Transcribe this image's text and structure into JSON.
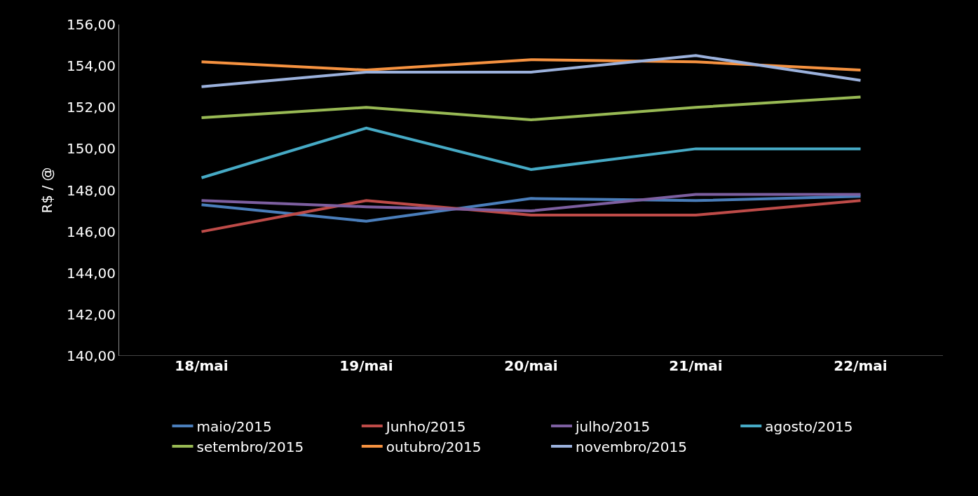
{
  "chart_data": {
    "type": "line",
    "ylabel": "R$ / @",
    "categories": [
      "18/mai",
      "19/mai",
      "20/mai",
      "21/mai",
      "22/mai"
    ],
    "series": [
      {
        "name": "maio/2015",
        "color": "#4a7ebb",
        "values": [
          147.3,
          146.5,
          147.6,
          147.5,
          147.7
        ]
      },
      {
        "name": "Junho/2015",
        "color": "#be4b48",
        "values": [
          146.0,
          147.5,
          146.8,
          146.8,
          147.5
        ]
      },
      {
        "name": "julho/2015",
        "color": "#7d5fa0",
        "values": [
          147.5,
          147.2,
          147.0,
          147.8,
          147.8
        ]
      },
      {
        "name": "agosto/2015",
        "color": "#46aac5",
        "values": [
          148.6,
          151.0,
          149.0,
          150.0,
          150.0
        ]
      },
      {
        "name": "setembro/2015",
        "color": "#98b954",
        "values": [
          151.5,
          152.0,
          151.4,
          152.0,
          152.5
        ]
      },
      {
        "name": "outubro/2015",
        "color": "#f69240",
        "values": [
          154.2,
          153.8,
          154.3,
          154.2,
          153.8
        ]
      },
      {
        "name": "novembro/2015",
        "color": "#9bb1dc",
        "values": [
          153.0,
          153.7,
          153.7,
          154.5,
          153.3
        ]
      }
    ],
    "ylim": [
      140,
      156
    ],
    "yticks": [
      {
        "value": 140,
        "label": "140,00"
      },
      {
        "value": 142,
        "label": "142,00"
      },
      {
        "value": 144,
        "label": "144,00"
      },
      {
        "value": 146,
        "label": "146,00"
      },
      {
        "value": 148,
        "label": "148,00"
      },
      {
        "value": 150,
        "label": "150,00"
      },
      {
        "value": 152,
        "label": "152,00"
      },
      {
        "value": 154,
        "label": "154,00"
      },
      {
        "value": 156,
        "label": "156,00"
      }
    ],
    "grid": false,
    "legend": "bottom",
    "marker": "none",
    "line_style": "solid"
  }
}
